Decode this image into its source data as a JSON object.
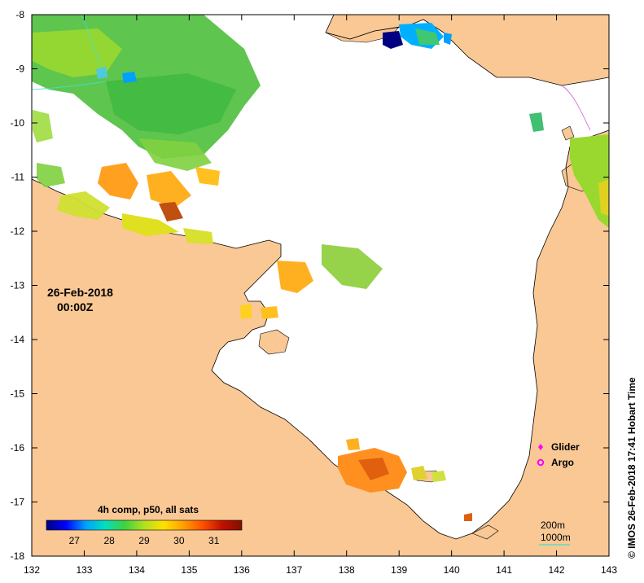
{
  "map": {
    "date_label": "26-Feb-2018",
    "time_label": "00:00Z",
    "credit": "© IMOS 26-Feb-2018 17:41 Hobart Time",
    "colorbar": {
      "title": "4h comp, p50, all sats",
      "range": [
        26.2,
        31.8
      ],
      "ticks": [
        "27",
        "28",
        "29",
        "30",
        "31"
      ],
      "colors": [
        "#00007f",
        "#0000ff",
        "#00a0ff",
        "#00e0c0",
        "#40d040",
        "#b0e020",
        "#ffe000",
        "#ffa000",
        "#ff5000",
        "#c01000",
        "#801000"
      ]
    },
    "axes": {
      "x_ticks": [
        "132",
        "133",
        "134",
        "135",
        "136",
        "137",
        "138",
        "139",
        "140",
        "141",
        "142",
        "143"
      ],
      "y_ticks": [
        "-8",
        "-9",
        "-10",
        "-11",
        "-12",
        "-13",
        "-14",
        "-15",
        "-16",
        "-17",
        "-18"
      ]
    },
    "legend": {
      "glider": "Glider",
      "argo": "Argo",
      "contour_200": "200m",
      "contour_1000": "1000m"
    },
    "colors": {
      "land": "#f9c894",
      "sea": "#ffffff",
      "glider": "#ff00ff",
      "argo": "#ff00ff",
      "isobath_1000": "#40e0d0"
    }
  }
}
